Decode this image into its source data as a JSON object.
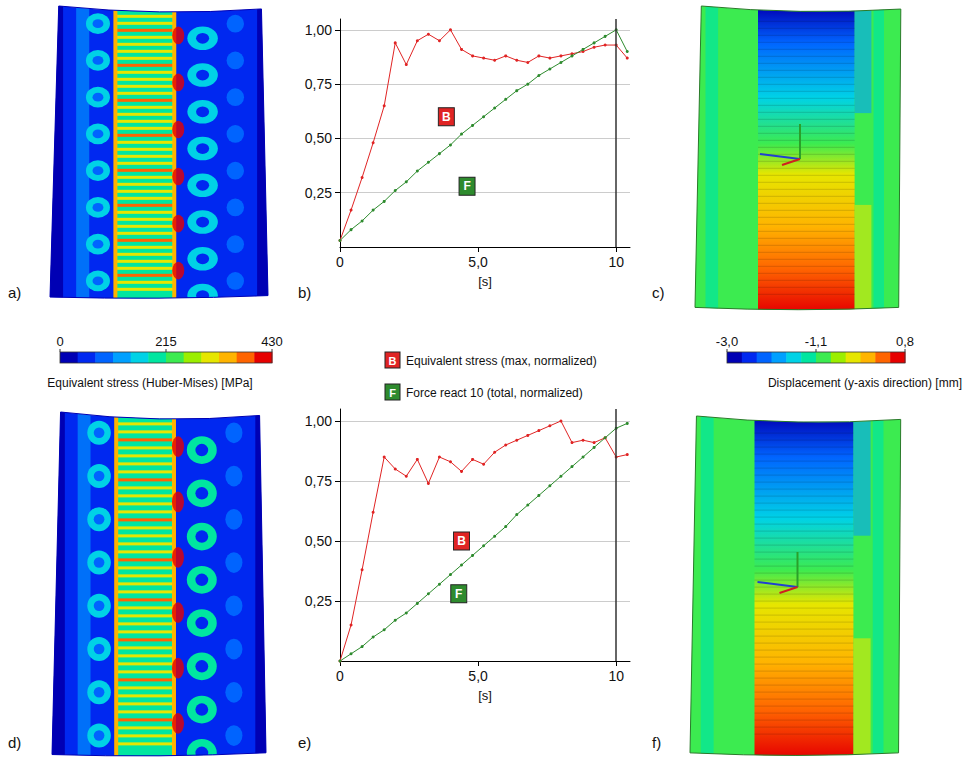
{
  "chart_data": [
    {
      "type": "line",
      "xlabel": "[s]",
      "xlim": [
        0,
        10.5
      ],
      "xticks": [
        0,
        {
          "value": 5,
          "label": "5,0"
        },
        10
      ],
      "ylim": [
        0,
        1.05
      ],
      "yticks": [
        {
          "value": 0.25,
          "label": "0,25"
        },
        {
          "value": 0.5,
          "label": "0,50"
        },
        {
          "value": 0.75,
          "label": "0,75"
        },
        {
          "value": 1,
          "label": "1,00"
        }
      ],
      "grid": true,
      "x": [
        0,
        0.4,
        0.8,
        1.2,
        1.6,
        2.0,
        2.4,
        2.8,
        3.2,
        3.6,
        4.0,
        4.4,
        4.8,
        5.2,
        5.6,
        6.0,
        6.4,
        6.8,
        7.2,
        7.6,
        8.0,
        8.4,
        8.8,
        9.2,
        9.6,
        10.0,
        10.4
      ],
      "series": [
        {
          "name": "Equivalent stress (max, normalized)",
          "color": "#e02424",
          "marker": "circle",
          "values": [
            0.03,
            0.17,
            0.32,
            0.48,
            0.65,
            0.94,
            0.84,
            0.95,
            0.98,
            0.95,
            1.0,
            0.91,
            0.88,
            0.87,
            0.86,
            0.88,
            0.86,
            0.85,
            0.88,
            0.87,
            0.88,
            0.89,
            0.9,
            0.92,
            0.93,
            0.93,
            0.87
          ]
        },
        {
          "name": "Force react 10 (total, normalized)",
          "color": "#2e8b2e",
          "marker": "circle",
          "values": [
            0.03,
            0.08,
            0.12,
            0.17,
            0.21,
            0.26,
            0.3,
            0.35,
            0.39,
            0.43,
            0.47,
            0.52,
            0.56,
            0.6,
            0.64,
            0.68,
            0.72,
            0.75,
            0.79,
            0.82,
            0.85,
            0.88,
            0.91,
            0.94,
            0.97,
            1.0,
            0.9
          ]
        }
      ],
      "annotations": [
        {
          "text": "B",
          "series": 0,
          "x": 3.85,
          "y": 0.6
        },
        {
          "text": "F",
          "series": 1,
          "x": 4.6,
          "y": 0.28
        }
      ]
    },
    {
      "type": "line",
      "xlabel": "[s]",
      "xlim": [
        0,
        10.5
      ],
      "xticks": [
        0,
        {
          "value": 5,
          "label": "5,0"
        },
        10
      ],
      "ylim": [
        0,
        1.05
      ],
      "yticks": [
        {
          "value": 0.25,
          "label": "0,25"
        },
        {
          "value": 0.5,
          "label": "0,50"
        },
        {
          "value": 0.75,
          "label": "0,75"
        },
        {
          "value": 1,
          "label": "1,00"
        }
      ],
      "grid": true,
      "x": [
        0,
        0.4,
        0.8,
        1.2,
        1.6,
        2.0,
        2.4,
        2.8,
        3.2,
        3.6,
        4.0,
        4.4,
        4.8,
        5.2,
        5.6,
        6.0,
        6.4,
        6.8,
        7.2,
        7.6,
        8.0,
        8.4,
        8.8,
        9.2,
        9.6,
        10.0,
        10.4
      ],
      "series": [
        {
          "name": "Equivalent stress (max, normalized)",
          "color": "#e02424",
          "marker": "circle",
          "values": [
            0.0,
            0.15,
            0.38,
            0.62,
            0.85,
            0.8,
            0.77,
            0.84,
            0.74,
            0.85,
            0.83,
            0.79,
            0.84,
            0.82,
            0.87,
            0.9,
            0.92,
            0.94,
            0.96,
            0.98,
            1.0,
            0.91,
            0.92,
            0.91,
            0.93,
            0.85,
            0.86
          ]
        },
        {
          "name": "Force react 10 (total, normalized)",
          "color": "#2e8b2e",
          "marker": "circle",
          "values": [
            0.0,
            0.03,
            0.06,
            0.1,
            0.13,
            0.17,
            0.2,
            0.24,
            0.28,
            0.32,
            0.36,
            0.4,
            0.44,
            0.48,
            0.52,
            0.56,
            0.61,
            0.65,
            0.69,
            0.73,
            0.77,
            0.81,
            0.85,
            0.89,
            0.93,
            0.97,
            0.99
          ]
        }
      ],
      "annotations": [
        {
          "text": "B",
          "series": 0,
          "x": 4.4,
          "y": 0.5
        },
        {
          "text": "F",
          "series": 1,
          "x": 4.3,
          "y": 0.28
        }
      ]
    }
  ],
  "panel_labels": [
    "a)",
    "b)",
    "c)",
    "d)",
    "e)",
    "f)"
  ],
  "colorbars": [
    {
      "title": "Equivalent stress (Huber-Mises) [MPa]",
      "range": [
        0,
        430
      ],
      "ticks": [
        0,
        215,
        430
      ],
      "colors": [
        "#0000b4",
        "#0028f0",
        "#0064ff",
        "#00a0ff",
        "#00d2e6",
        "#00e6a0",
        "#3ceb50",
        "#9bee00",
        "#e6e600",
        "#ffb400",
        "#ff6400",
        "#e60000"
      ]
    },
    {
      "title": "Displacement (y-axis direction) [mm]",
      "range": [
        -3.0,
        0.8
      ],
      "ticks": [
        {
          "value": -3,
          "label": "-3,0"
        },
        {
          "value": -1.1,
          "label": "-1,1"
        },
        {
          "value": 0.8,
          "label": "0,8"
        }
      ],
      "colors": [
        "#0000b4",
        "#0028f0",
        "#0064ff",
        "#00a0ff",
        "#00d2e6",
        "#00e6a0",
        "#3ceb50",
        "#9bee00",
        "#e6e600",
        "#ffb400",
        "#ff6400",
        "#e60000"
      ]
    }
  ]
}
